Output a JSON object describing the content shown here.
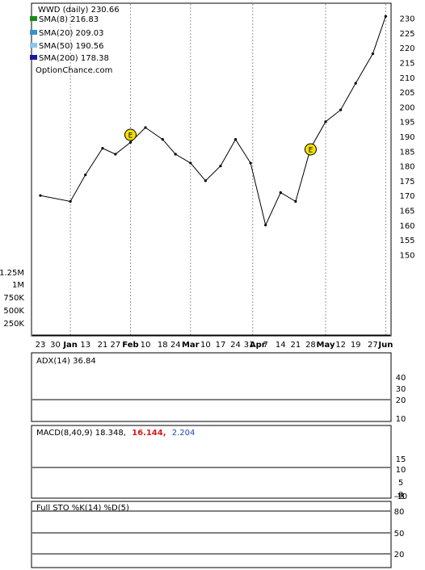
{
  "chart_data": {
    "type": "stock_chart",
    "symbol_label": "WWD (daily) 230.66",
    "watermark": "OptionChance.com",
    "x_ticks": [
      {
        "label": "23",
        "date": "2024-12-23"
      },
      {
        "label": "30",
        "date": "2024-12-30"
      },
      {
        "label": "Jan",
        "date": "2025-01-06",
        "month": true
      },
      {
        "label": "13",
        "date": "2025-01-13"
      },
      {
        "label": "21",
        "date": "2025-01-21"
      },
      {
        "label": "27",
        "date": "2025-01-27"
      },
      {
        "label": "Feb",
        "date": "2025-02-03",
        "month": true
      },
      {
        "label": "10",
        "date": "2025-02-10"
      },
      {
        "label": "18",
        "date": "2025-02-18"
      },
      {
        "label": "24",
        "date": "2025-02-24"
      },
      {
        "label": "Mar",
        "date": "2025-03-03",
        "month": true
      },
      {
        "label": "10",
        "date": "2025-03-10"
      },
      {
        "label": "17",
        "date": "2025-03-17"
      },
      {
        "label": "24",
        "date": "2025-03-24"
      },
      {
        "label": "31",
        "date": "2025-03-31"
      },
      {
        "label": "Apr",
        "date": "2025-04-01",
        "month": true
      },
      {
        "label": "7",
        "date": "2025-04-07"
      },
      {
        "label": "14",
        "date": "2025-04-14"
      },
      {
        "label": "21",
        "date": "2025-04-21"
      },
      {
        "label": "28",
        "date": "2025-04-28"
      },
      {
        "label": "May",
        "date": "2025-05-05",
        "month": true
      },
      {
        "label": "12",
        "date": "2025-05-12"
      },
      {
        "label": "19",
        "date": "2025-05-19"
      },
      {
        "label": "27",
        "date": "2025-05-27"
      },
      {
        "label": "Jun",
        "date": "2025-06-02",
        "month": true
      }
    ],
    "price": {
      "y_ticks": [
        150,
        155,
        160,
        165,
        170,
        175,
        180,
        185,
        190,
        195,
        200,
        205,
        210,
        215,
        220,
        225,
        230
      ],
      "ylim": [
        146,
        234
      ],
      "close_samples": [
        {
          "date": "2024-12-23",
          "value": 170
        },
        {
          "date": "2025-01-06",
          "value": 168
        },
        {
          "date": "2025-01-13",
          "value": 177
        },
        {
          "date": "2025-01-21",
          "value": 186
        },
        {
          "date": "2025-01-27",
          "value": 184
        },
        {
          "date": "2025-02-03",
          "value": 188
        },
        {
          "date": "2025-02-10",
          "value": 193
        },
        {
          "date": "2025-02-18",
          "value": 189
        },
        {
          "date": "2025-02-24",
          "value": 184
        },
        {
          "date": "2025-03-03",
          "value": 181
        },
        {
          "date": "2025-03-10",
          "value": 175
        },
        {
          "date": "2025-03-17",
          "value": 180
        },
        {
          "date": "2025-03-24",
          "value": 189
        },
        {
          "date": "2025-03-31",
          "value": 181
        },
        {
          "date": "2025-04-07",
          "value": 160
        },
        {
          "date": "2025-04-14",
          "value": 171
        },
        {
          "date": "2025-04-21",
          "value": 168
        },
        {
          "date": "2025-04-28",
          "value": 186
        },
        {
          "date": "2025-05-05",
          "value": 195
        },
        {
          "date": "2025-05-12",
          "value": 199
        },
        {
          "date": "2025-05-19",
          "value": 208
        },
        {
          "date": "2025-05-27",
          "value": 218
        },
        {
          "date": "2025-06-02",
          "value": 230.66
        }
      ],
      "legend": [
        {
          "label": "SMA(8) 216.83",
          "color": "#1a8a1a"
        },
        {
          "label": "SMA(20) 209.03",
          "color": "#3a8fd0"
        },
        {
          "label": "SMA(50) 190.56",
          "color": "#8cc6ec"
        },
        {
          "label": "SMA(200) 178.38",
          "color": "#1a1aa0"
        }
      ],
      "earnings_markers": [
        {
          "label": "E",
          "date": "2025-02-03"
        },
        {
          "label": "E",
          "date": "2025-04-28"
        }
      ]
    },
    "volume": {
      "y_ticks": [
        "1.25M",
        "1M",
        "750K",
        "500K",
        "250K"
      ]
    },
    "adx": {
      "label": "ADX(14) 36.84",
      "y_ticks": [
        40,
        30,
        20,
        10
      ]
    },
    "macd": {
      "label": "MACD(8,40,9) 18.348,",
      "value2": "16.144,",
      "value3": "2.204",
      "value2_color": "#d41a1a",
      "value3_color": "#1a4ac0",
      "y_ticks": [
        15,
        10,
        5,
        0,
        -5,
        -10
      ]
    },
    "stochastic": {
      "label": "Full STO %K(14) %D(5)",
      "y_ticks": [
        80,
        50,
        20
      ]
    }
  }
}
